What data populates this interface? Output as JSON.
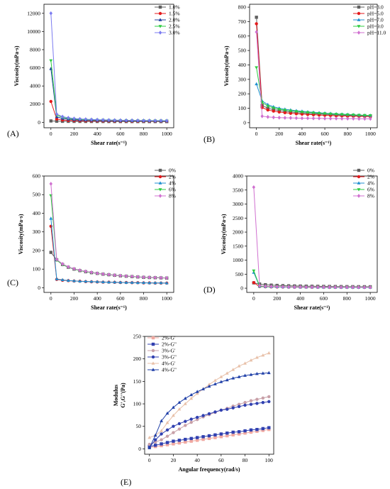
{
  "chart_data": [
    {
      "id": "A",
      "type": "line",
      "panel_label": "(A)",
      "xlabel": "Shear rate(s⁻¹)",
      "ylabel": "Viscosity(mPa·s)",
      "xlim": [
        -60,
        1060
      ],
      "ylim": [
        -600,
        13000
      ],
      "xticks": [
        0,
        200,
        400,
        600,
        800,
        1000
      ],
      "yticks": [
        0,
        2000,
        4000,
        6000,
        8000,
        10000,
        12000
      ],
      "legend_position": "top-right",
      "x": [
        0,
        50,
        100,
        150,
        200,
        250,
        300,
        350,
        400,
        450,
        500,
        550,
        600,
        650,
        700,
        750,
        800,
        850,
        900,
        950,
        1000
      ],
      "series": [
        {
          "name": "1.0%",
          "color": "#606060",
          "marker": "square",
          "values": [
            150,
            120,
            110,
            105,
            100,
            98,
            96,
            94,
            92,
            90,
            88,
            86,
            85,
            84,
            83,
            82,
            81,
            80,
            79,
            78,
            77
          ]
        },
        {
          "name": "1.5%",
          "color": "#e41a1c",
          "marker": "circle",
          "values": [
            2300,
            350,
            250,
            210,
            190,
            175,
            165,
            160,
            155,
            150,
            145,
            140,
            138,
            135,
            132,
            130,
            128,
            126,
            125,
            124,
            123
          ]
        },
        {
          "name": "2.0%",
          "color": "#1f3fa0",
          "marker": "triangle",
          "values": [
            5900,
            600,
            420,
            340,
            290,
            260,
            240,
            225,
            210,
            200,
            190,
            182,
            176,
            170,
            165,
            160,
            156,
            152,
            148,
            145,
            142
          ]
        },
        {
          "name": "2.5%",
          "color": "#2ecc40",
          "marker": "triangle-down",
          "values": [
            6800,
            800,
            540,
            430,
            360,
            320,
            290,
            268,
            250,
            236,
            224,
            214,
            205,
            198,
            191,
            185,
            180,
            175,
            171,
            167,
            164
          ]
        },
        {
          "name": "3.0%",
          "color": "#7b7bf0",
          "marker": "diamond",
          "values": [
            12000,
            900,
            620,
            500,
            420,
            370,
            335,
            308,
            288,
            270,
            256,
            244,
            234,
            225,
            217,
            210,
            204,
            198,
            193,
            188,
            184
          ]
        }
      ]
    },
    {
      "id": "B",
      "type": "line",
      "panel_label": "(B)",
      "xlabel": "Shear rate(s⁻¹)",
      "ylabel": "Viscosity(mPa·s)",
      "xlim": [
        -60,
        1060
      ],
      "ylim": [
        -35,
        820
      ],
      "xticks": [
        0,
        200,
        400,
        600,
        800,
        1000
      ],
      "yticks": [
        0,
        100,
        200,
        300,
        400,
        500,
        600,
        700,
        800
      ],
      "legend_position": "top-right",
      "x": [
        0,
        50,
        100,
        150,
        200,
        250,
        300,
        350,
        400,
        450,
        500,
        550,
        600,
        650,
        700,
        750,
        800,
        850,
        900,
        950,
        1000
      ],
      "series": [
        {
          "name": "pH=3.0",
          "color": "#606060",
          "marker": "square",
          "values": [
            730,
            120,
            100,
            90,
            84,
            78,
            74,
            70,
            67,
            64,
            62,
            60,
            58,
            56,
            54,
            52,
            51,
            50,
            49,
            48,
            47
          ]
        },
        {
          "name": "pH=5.0",
          "color": "#e41a1c",
          "marker": "circle",
          "values": [
            685,
            105,
            88,
            80,
            74,
            69,
            65,
            62,
            59,
            57,
            55,
            53,
            51,
            50,
            48,
            47,
            46,
            45,
            44,
            43,
            42
          ]
        },
        {
          "name": "pH=7.0",
          "color": "#1f8fd0",
          "marker": "triangle",
          "values": [
            268,
            150,
            125,
            110,
            100,
            93,
            88,
            83,
            79,
            75,
            72,
            69,
            66,
            64,
            61,
            59,
            57,
            55,
            53,
            51,
            50
          ]
        },
        {
          "name": "pH=9.0",
          "color": "#2ecc40",
          "marker": "triangle-down",
          "values": [
            382,
            140,
            115,
            102,
            93,
            87,
            82,
            78,
            74,
            71,
            68,
            65,
            63,
            61,
            59,
            57,
            55,
            54,
            52,
            51,
            50
          ]
        },
        {
          "name": "pH=11.0",
          "color": "#d070d0",
          "marker": "diamond",
          "values": [
            628,
            45,
            40,
            37,
            35,
            34,
            33,
            32,
            31,
            31,
            30,
            30,
            29,
            29,
            29,
            28,
            28,
            28,
            27,
            27,
            27
          ]
        }
      ]
    },
    {
      "id": "C",
      "type": "line",
      "panel_label": "(C)",
      "xlabel": "Shear rate(s⁻¹)",
      "ylabel": "Viscosity(mPa·s)",
      "xlim": [
        -60,
        1060
      ],
      "ylim": [
        -25,
        600
      ],
      "xticks": [
        0,
        200,
        400,
        600,
        800,
        1000
      ],
      "yticks": [
        0,
        100,
        200,
        300,
        400,
        500,
        600
      ],
      "legend_position": "top-right",
      "x": [
        0,
        50,
        100,
        150,
        200,
        250,
        300,
        350,
        400,
        450,
        500,
        550,
        600,
        650,
        700,
        750,
        800,
        850,
        900,
        950,
        1000
      ],
      "series": [
        {
          "name": "0%",
          "color": "#606060",
          "marker": "square",
          "values": [
            190,
            150,
            125,
            110,
            100,
            92,
            86,
            81,
            77,
            73,
            70,
            67,
            64,
            62,
            60,
            58,
            56,
            55,
            54,
            53,
            52
          ]
        },
        {
          "name": "2%",
          "color": "#e41a1c",
          "marker": "circle",
          "values": [
            330,
            45,
            40,
            38,
            36,
            35,
            33,
            32,
            31,
            30,
            30,
            29,
            28,
            28,
            27,
            27,
            26,
            26,
            25,
            25,
            25
          ]
        },
        {
          "name": "4%",
          "color": "#1f8fd0",
          "marker": "triangle",
          "values": [
            372,
            47,
            42,
            39,
            37,
            35,
            34,
            33,
            32,
            31,
            30,
            30,
            29,
            28,
            28,
            27,
            27,
            26,
            26,
            26,
            25
          ]
        },
        {
          "name": "6%",
          "color": "#2ecc40",
          "marker": "triangle-down",
          "values": [
            495,
            148,
            124,
            110,
            100,
            92,
            86,
            81,
            77,
            73,
            70,
            67,
            64,
            62,
            60,
            58,
            56,
            55,
            54,
            53,
            52
          ]
        },
        {
          "name": "8%",
          "color": "#d070d0",
          "marker": "diamond",
          "values": [
            558,
            152,
            128,
            112,
            102,
            94,
            88,
            83,
            78,
            74,
            71,
            68,
            65,
            63,
            61,
            59,
            57,
            56,
            55,
            54,
            53
          ]
        }
      ]
    },
    {
      "id": "D",
      "type": "line",
      "panel_label": "(D)",
      "xlabel": "Shear rate(s⁻¹)",
      "ylabel": "Viscosity(mPa·s)",
      "xlim": [
        -60,
        1060
      ],
      "ylim": [
        -150,
        4000
      ],
      "xticks": [
        0,
        200,
        400,
        600,
        800,
        1000
      ],
      "yticks": [
        0,
        500,
        1000,
        1500,
        2000,
        2500,
        3000,
        3500,
        4000
      ],
      "legend_position": "top-right",
      "x": [
        0,
        50,
        100,
        150,
        200,
        250,
        300,
        350,
        400,
        450,
        500,
        550,
        600,
        650,
        700,
        750,
        800,
        850,
        900,
        950,
        1000
      ],
      "series": [
        {
          "name": "0%",
          "color": "#606060",
          "marker": "square",
          "values": [
            190,
            150,
            125,
            110,
            100,
            92,
            86,
            81,
            77,
            73,
            70,
            67,
            64,
            62,
            60,
            58,
            56,
            55,
            54,
            53,
            52
          ]
        },
        {
          "name": "2%",
          "color": "#e41a1c",
          "marker": "circle",
          "values": [
            200,
            60,
            50,
            45,
            42,
            40,
            38,
            36,
            35,
            34,
            33,
            32,
            31,
            30,
            30,
            29,
            29,
            28,
            28,
            27,
            27
          ]
        },
        {
          "name": "4%",
          "color": "#1f8fd0",
          "marker": "triangle",
          "values": [
            560,
            65,
            55,
            50,
            46,
            43,
            41,
            39,
            38,
            37,
            36,
            35,
            34,
            33,
            32,
            32,
            31,
            31,
            30,
            30,
            29
          ]
        },
        {
          "name": "6%",
          "color": "#2ecc40",
          "marker": "triangle-down",
          "values": [
            620,
            70,
            58,
            52,
            48,
            45,
            43,
            41,
            39,
            38,
            37,
            36,
            35,
            34,
            33,
            33,
            32,
            32,
            31,
            31,
            30
          ]
        },
        {
          "name": "8%",
          "color": "#d070d0",
          "marker": "diamond",
          "values": [
            3600,
            90,
            70,
            62,
            56,
            52,
            49,
            47,
            45,
            43,
            42,
            41,
            40,
            39,
            38,
            37,
            37,
            36,
            35,
            35,
            34
          ]
        }
      ]
    },
    {
      "id": "E",
      "type": "line",
      "panel_label": "(E)",
      "xlabel": "Angular frequency(rad/s)",
      "ylabel": "Modulus",
      "ylabel2": "G',G''(Pa)",
      "xlim": [
        -4,
        104
      ],
      "ylim": [
        -12,
        250
      ],
      "xticks": [
        0,
        20,
        40,
        60,
        80,
        100
      ],
      "yticks": [
        0,
        50,
        100,
        150,
        200,
        250
      ],
      "legend_position": "top-left",
      "x": [
        0,
        5,
        10,
        15,
        20,
        25,
        30,
        35,
        40,
        45,
        50,
        55,
        60,
        65,
        70,
        75,
        80,
        85,
        90,
        95,
        100
      ],
      "series": [
        {
          "name": "2%-G'",
          "color": "#f0a8a0",
          "marker": "square",
          "values": [
            3,
            5,
            7,
            9,
            11,
            13,
            15,
            17,
            19,
            21,
            23,
            25,
            27,
            29,
            31,
            33,
            35,
            37,
            39,
            41,
            43
          ]
        },
        {
          "name": "2%-G\"",
          "color": "#3040b0",
          "marker": "square",
          "values": [
            5,
            8,
            11,
            14,
            17,
            19,
            21,
            23,
            25,
            27,
            29,
            31,
            33,
            35,
            37,
            38,
            40,
            42,
            43,
            45,
            47
          ]
        },
        {
          "name": "3%-G'",
          "color": "#c8a0a8",
          "marker": "circle",
          "values": [
            10,
            15,
            20,
            28,
            36,
            44,
            52,
            59,
            65,
            71,
            76,
            81,
            86,
            90,
            95,
            99,
            103,
            107,
            110,
            113,
            116
          ]
        },
        {
          "name": "3%-G\"",
          "color": "#3040b0",
          "marker": "circle",
          "values": [
            3,
            20,
            33,
            42,
            50,
            56,
            61,
            66,
            70,
            74,
            78,
            82,
            86,
            88,
            91,
            94,
            97,
            99,
            101,
            103,
            105
          ]
        },
        {
          "name": "4%-G'",
          "color": "#e8c0a8",
          "marker": "triangle",
          "values": [
            25,
            30,
            40,
            58,
            74,
            88,
            100,
            112,
            123,
            133,
            143,
            152,
            160,
            168,
            176,
            184,
            190,
            197,
            203,
            208,
            213
          ]
        },
        {
          "name": "4%-G\"",
          "color": "#2040a8",
          "marker": "triangle",
          "values": [
            2,
            30,
            62,
            79,
            92,
            103,
            112,
            120,
            127,
            133,
            139,
            144,
            149,
            153,
            157,
            160,
            163,
            165,
            167,
            168,
            169
          ]
        }
      ]
    }
  ]
}
